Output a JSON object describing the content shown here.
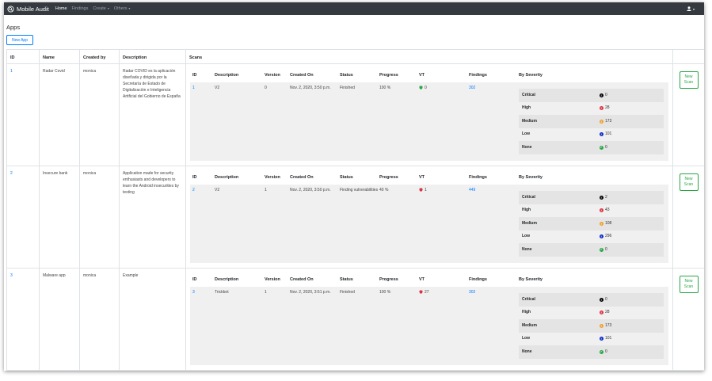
{
  "navbar": {
    "brand": "Mobile Audit",
    "links": [
      {
        "label": "Home"
      },
      {
        "label": "Findings"
      },
      {
        "label": "Create"
      },
      {
        "label": "Others"
      }
    ]
  },
  "page": {
    "title": "Apps",
    "new_app_label": "New App"
  },
  "table": {
    "headers": {
      "id": "ID",
      "name": "Name",
      "created_by": "Created by",
      "description": "Description",
      "scans": "Scans"
    }
  },
  "scan_headers": {
    "id": "ID",
    "description": "Description",
    "version": "Version",
    "created_on": "Created On",
    "status": "Status",
    "progress": "Progress",
    "vt": "VT",
    "findings": "Findings",
    "by_severity": "By Severity"
  },
  "severity_labels": [
    "Critical",
    "High",
    "Medium",
    "Low",
    "None"
  ],
  "severity_colors": [
    "#000000",
    "#dc3545",
    "#f0a030",
    "#0d2dc8",
    "#28a745"
  ],
  "new_scan_label": "New Scan",
  "apps": [
    {
      "id": "1",
      "name": "Radar Covid",
      "created_by": "monica",
      "description": "Radar COVID es la aplicación diseñada y dirigida por la Secretaría de Estado de Digitalización e Inteligencia Artificial del Gobierno de España",
      "scan": {
        "id": "1",
        "description": "V2",
        "version": "0",
        "created_on": "Nov. 2, 2020, 3:50 p.m.",
        "status": "Finished",
        "progress": "100 %",
        "vt": "0",
        "vt_color": "#28a745",
        "findings": "302",
        "severity": [
          "0",
          "28",
          "173",
          "101",
          "0"
        ]
      }
    },
    {
      "id": "2",
      "name": "Insecure bank",
      "created_by": "monica",
      "description": "Application made for security enthusiasts and developers to learn the Android insecurities by testing",
      "scan": {
        "id": "2",
        "description": "V2",
        "version": "1",
        "created_on": "Nov. 2, 2020, 3:50 p.m.",
        "status": "Finding vulnerabilities",
        "progress": "40 %",
        "vt": "1",
        "vt_color": "#dc3545",
        "findings": "449",
        "severity": [
          "2",
          "43",
          "108",
          "296",
          "0"
        ]
      }
    },
    {
      "id": "3",
      "name": "Malware app",
      "created_by": "monica",
      "description": "Example",
      "scan": {
        "id": "3",
        "description": "Trickbot",
        "version": "1",
        "created_on": "Nov. 2, 2020, 3:51 p.m.",
        "status": "Finished",
        "progress": "100 %",
        "vt": "27",
        "vt_color": "#dc3545",
        "findings": "302",
        "severity": [
          "0",
          "28",
          "173",
          "101",
          "0"
        ]
      }
    }
  ]
}
